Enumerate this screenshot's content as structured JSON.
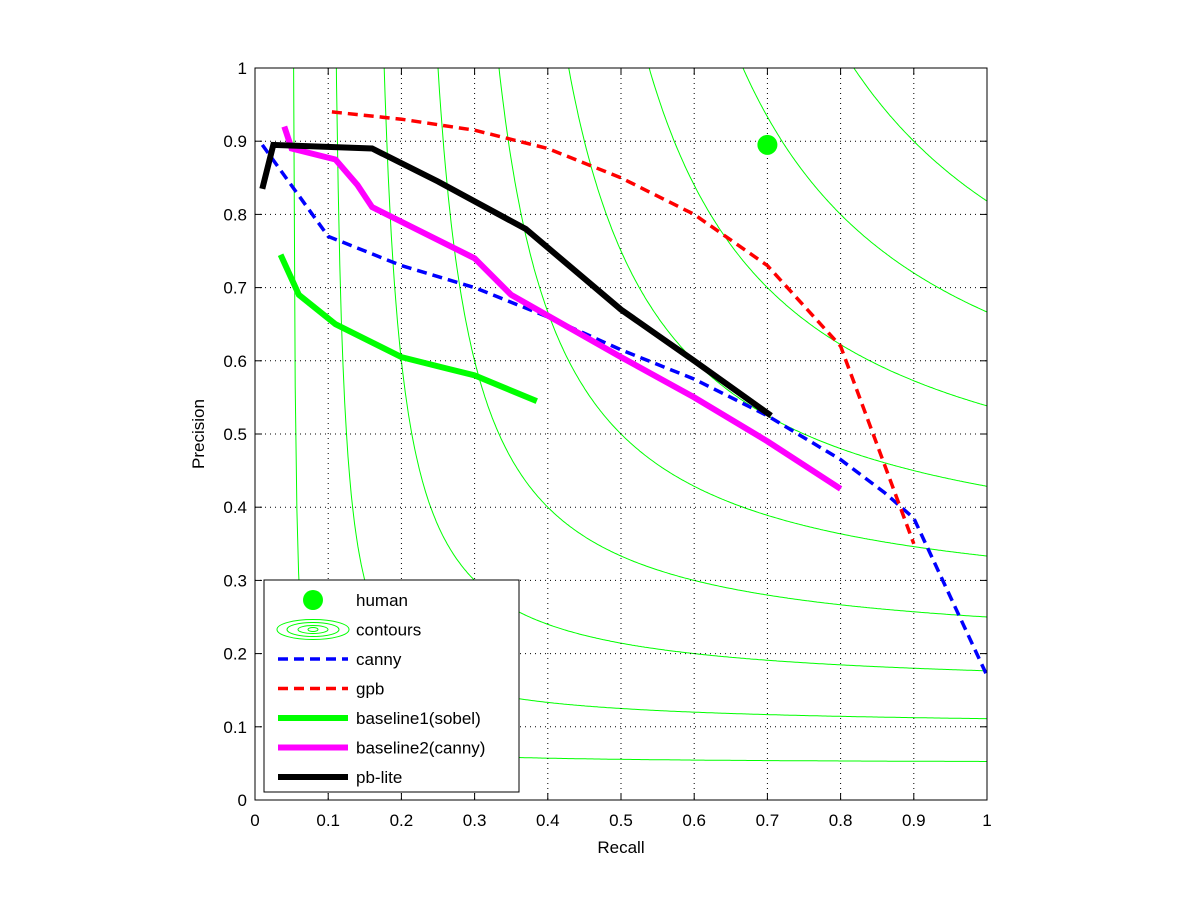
{
  "chart_data": {
    "type": "line",
    "title": "",
    "xlabel": "Recall",
    "ylabel": "Precision",
    "xlim": [
      0,
      1
    ],
    "ylim": [
      0,
      1
    ],
    "xticks": [
      "0",
      "0.1",
      "0.2",
      "0.3",
      "0.4",
      "0.5",
      "0.6",
      "0.7",
      "0.8",
      "0.9",
      "1"
    ],
    "yticks": [
      "0",
      "0.1",
      "0.2",
      "0.3",
      "0.4",
      "0.5",
      "0.6",
      "0.7",
      "0.8",
      "0.9",
      "1"
    ],
    "grid": true,
    "legend_position": "bottom-left",
    "contour_f_levels": [
      0.1,
      0.2,
      0.3,
      0.4,
      0.5,
      0.6,
      0.7,
      0.8,
      0.9
    ],
    "series": [
      {
        "name": "human",
        "kind": "point",
        "color": "#00ff00",
        "points": [
          [
            0.7,
            0.895
          ]
        ]
      },
      {
        "name": "contours",
        "kind": "contour",
        "color": "#00ff00"
      },
      {
        "name": "canny",
        "kind": "dashed",
        "color": "#0000ff",
        "points": [
          [
            0.01,
            0.895
          ],
          [
            0.1,
            0.77
          ],
          [
            0.2,
            0.73
          ],
          [
            0.3,
            0.7
          ],
          [
            0.4,
            0.66
          ],
          [
            0.5,
            0.615
          ],
          [
            0.6,
            0.575
          ],
          [
            0.7,
            0.525
          ],
          [
            0.8,
            0.465
          ],
          [
            0.86,
            0.42
          ],
          [
            0.9,
            0.385
          ],
          [
            1.0,
            0.17
          ]
        ]
      },
      {
        "name": "gpb",
        "kind": "dashed",
        "color": "#ff0000",
        "points": [
          [
            0.105,
            0.94
          ],
          [
            0.2,
            0.93
          ],
          [
            0.3,
            0.915
          ],
          [
            0.4,
            0.89
          ],
          [
            0.5,
            0.85
          ],
          [
            0.6,
            0.8
          ],
          [
            0.7,
            0.73
          ],
          [
            0.8,
            0.62
          ],
          [
            0.9,
            0.35
          ]
        ]
      },
      {
        "name": "baseline1(sobel)",
        "kind": "solid",
        "color": "#00ff00",
        "points": [
          [
            0.035,
            0.745
          ],
          [
            0.06,
            0.69
          ],
          [
            0.11,
            0.65
          ],
          [
            0.15,
            0.63
          ],
          [
            0.2,
            0.605
          ],
          [
            0.26,
            0.59
          ],
          [
            0.3,
            0.58
          ],
          [
            0.385,
            0.545
          ]
        ]
      },
      {
        "name": "baseline2(canny)",
        "kind": "solid",
        "color": "#ff00ff",
        "points": [
          [
            0.04,
            0.92
          ],
          [
            0.05,
            0.89
          ],
          [
            0.11,
            0.875
          ],
          [
            0.14,
            0.84
          ],
          [
            0.16,
            0.81
          ],
          [
            0.3,
            0.74
          ],
          [
            0.35,
            0.69
          ],
          [
            0.5,
            0.605
          ],
          [
            0.6,
            0.55
          ],
          [
            0.7,
            0.49
          ],
          [
            0.8,
            0.425
          ]
        ]
      },
      {
        "name": "pb-lite",
        "kind": "solid",
        "color": "#000000",
        "points": [
          [
            0.01,
            0.835
          ],
          [
            0.025,
            0.895
          ],
          [
            0.16,
            0.89
          ],
          [
            0.25,
            0.845
          ],
          [
            0.37,
            0.78
          ],
          [
            0.5,
            0.67
          ],
          [
            0.6,
            0.6
          ],
          [
            0.705,
            0.525
          ]
        ]
      }
    ]
  }
}
